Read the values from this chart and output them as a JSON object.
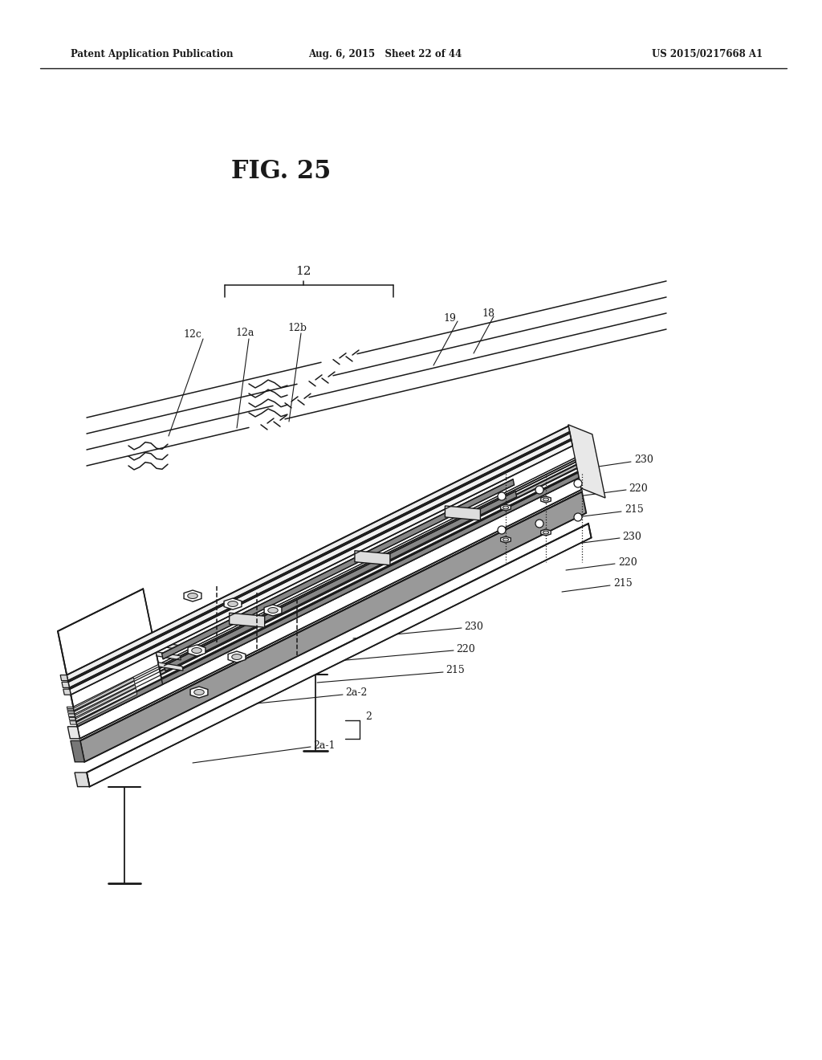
{
  "header_left": "Patent Application Publication",
  "header_middle": "Aug. 6, 2015   Sheet 22 of 44",
  "header_right": "US 2015/0217668 A1",
  "figure_title": "FIG. 25",
  "bg_color": "#ffffff"
}
